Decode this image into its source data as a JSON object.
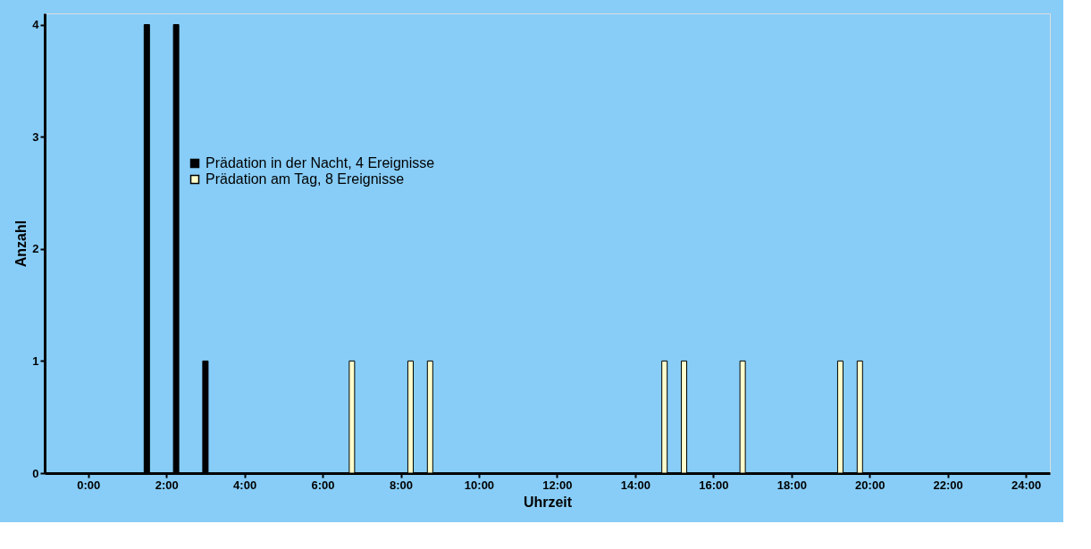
{
  "chart_data": {
    "type": "bar",
    "xlabel": "Uhrzeit",
    "ylabel": "Anzahl",
    "series": [
      {
        "name": "Prädation in der Nacht, 4 Ereignisse",
        "color": "#000000",
        "x": [
          1.5,
          2.25,
          3.0
        ],
        "values": [
          4,
          4,
          1
        ]
      },
      {
        "name": "Prädation am Tag, 8 Ereignisse",
        "color": "#ffffcc",
        "x": [
          6.75,
          8.25,
          8.75,
          14.75,
          15.25,
          16.75,
          19.25,
          19.75
        ],
        "values": [
          1,
          1,
          1,
          1,
          1,
          1,
          1,
          1
        ]
      }
    ],
    "xlim": [
      -1,
      24.5
    ],
    "xticks": [
      {
        "value": 0,
        "label": "0:00"
      },
      {
        "value": 2,
        "label": "2:00"
      },
      {
        "value": 4,
        "label": "4:00"
      },
      {
        "value": 6,
        "label": "6:00"
      },
      {
        "value": 8,
        "label": "8:00"
      },
      {
        "value": 10,
        "label": "10:00"
      },
      {
        "value": 12,
        "label": "12:00"
      },
      {
        "value": 14,
        "label": "14:00"
      },
      {
        "value": 16,
        "label": "16:00"
      },
      {
        "value": 18,
        "label": "18:00"
      },
      {
        "value": 20,
        "label": "20:00"
      },
      {
        "value": 22,
        "label": "22:00"
      },
      {
        "value": 24,
        "label": "24:00"
      }
    ],
    "ylim": [
      0,
      4.1
    ],
    "yticks": [
      0,
      1,
      2,
      3,
      4
    ],
    "grid": false,
    "legend": "top left"
  }
}
